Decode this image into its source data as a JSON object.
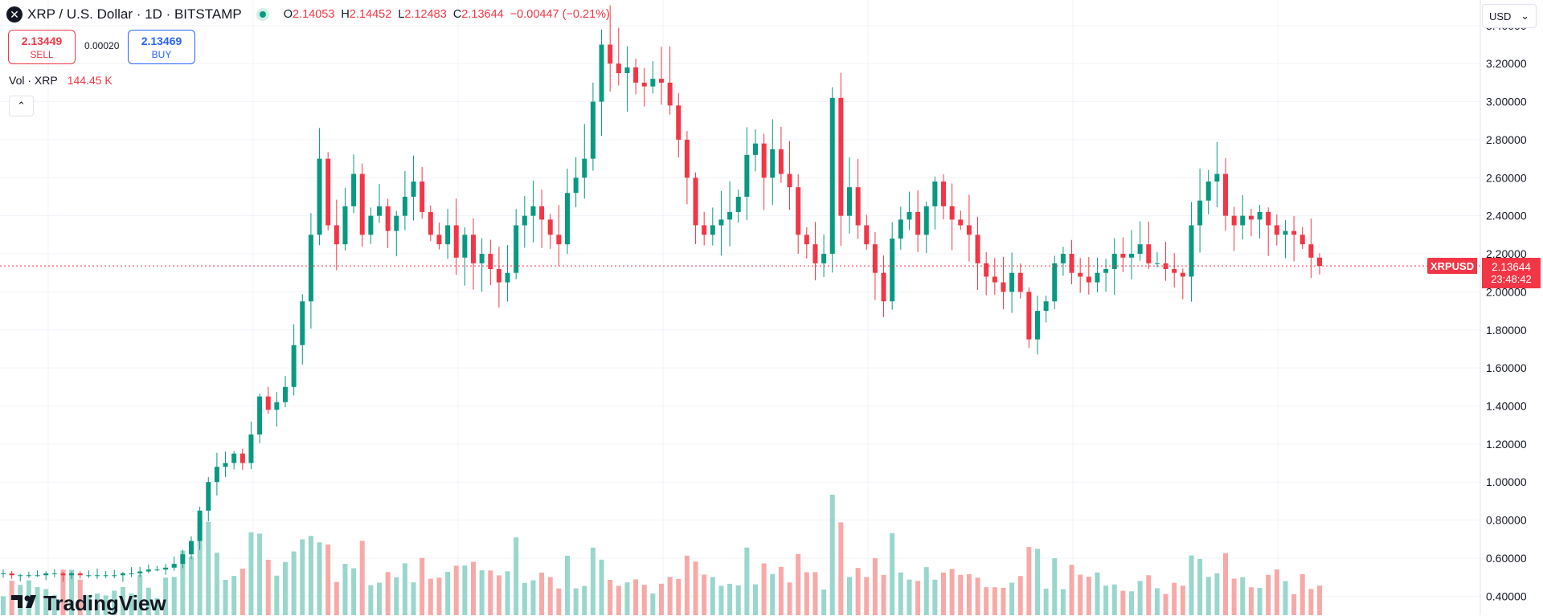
{
  "header": {
    "symbol_icon": "x-icon",
    "title": "XRP / U.S. Dollar · 1D · BITSTAMP",
    "ohlc": {
      "o_label": "O",
      "o": "2.14053",
      "h_label": "H",
      "h": "2.14452",
      "l_label": "L",
      "l": "2.12483",
      "c_label": "C",
      "c": "2.13644",
      "change": "−0.00447 (−0.21%)"
    }
  },
  "trade": {
    "sell_price": "2.13449",
    "sell_label": "SELL",
    "spread": "0.00020",
    "buy_price": "2.13469",
    "buy_label": "BUY"
  },
  "volume_indicator": {
    "label": "Vol · XRP",
    "value": "144.45 K"
  },
  "currency": "USD",
  "current_price": {
    "symbol": "XRPUSD",
    "price": "2.13644",
    "countdown": "23:48:42"
  },
  "branding": "TradingView",
  "colors": {
    "up": "#089981",
    "down": "#f23645",
    "up_vol": "#99d6cc",
    "down_vol": "#f7a9a7",
    "grid": "#f0f3fa"
  },
  "chart_data": {
    "type": "candlestick",
    "interval": "1D",
    "ylim": [
      0.3,
      3.45
    ],
    "y_ticks": [
      "3.40000",
      "3.20000",
      "3.00000",
      "2.80000",
      "2.60000",
      "2.40000",
      "2.20000",
      "2.00000",
      "1.80000",
      "1.60000",
      "1.40000",
      "1.20000",
      "1.00000",
      "0.80000",
      "0.60000",
      "0.40000"
    ],
    "close_path": [
      0.52,
      0.51,
      0.51,
      0.51,
      0.51,
      0.52,
      0.52,
      0.51,
      0.52,
      0.51,
      0.51,
      0.51,
      0.51,
      0.51,
      0.52,
      0.52,
      0.53,
      0.54,
      0.54,
      0.55,
      0.57,
      0.62,
      0.69,
      0.85,
      1.0,
      1.08,
      1.1,
      1.15,
      1.1,
      1.25,
      1.45,
      1.38,
      1.42,
      1.5,
      1.72,
      1.95,
      2.3,
      2.7,
      2.35,
      2.25,
      2.45,
      2.62,
      2.3,
      2.4,
      2.45,
      2.32,
      2.4,
      2.5,
      2.58,
      2.42,
      2.3,
      2.25,
      2.35,
      2.18,
      2.3,
      2.15,
      2.2,
      2.12,
      2.05,
      2.1,
      2.35,
      2.4,
      2.45,
      2.38,
      2.3,
      2.25,
      2.52,
      2.6,
      2.7,
      3.0,
      3.3,
      3.2,
      3.15,
      3.18,
      3.1,
      3.08,
      3.12,
      3.1,
      2.98,
      2.8,
      2.6,
      2.35,
      2.3,
      2.35,
      2.38,
      2.42,
      2.5,
      2.72,
      2.78,
      2.6,
      2.75,
      2.62,
      2.55,
      2.3,
      2.25,
      2.15,
      2.2,
      3.02,
      2.4,
      2.55,
      2.35,
      2.25,
      2.1,
      1.95,
      2.28,
      2.38,
      2.42,
      2.3,
      2.45,
      2.58,
      2.45,
      2.38,
      2.35,
      2.3,
      2.15,
      2.08,
      2.05,
      2.0,
      2.1,
      2.0,
      1.75,
      1.9,
      1.95,
      2.15,
      2.2,
      2.1,
      2.08,
      2.05,
      2.1,
      2.12,
      2.2,
      2.18,
      2.2,
      2.25,
      2.15,
      2.15,
      2.12,
      2.1,
      2.08,
      2.35,
      2.48,
      2.58,
      2.62,
      2.4,
      2.35,
      2.4,
      2.38,
      2.42,
      2.35,
      2.3,
      2.32,
      2.3,
      2.25,
      2.18,
      2.13644
    ]
  }
}
